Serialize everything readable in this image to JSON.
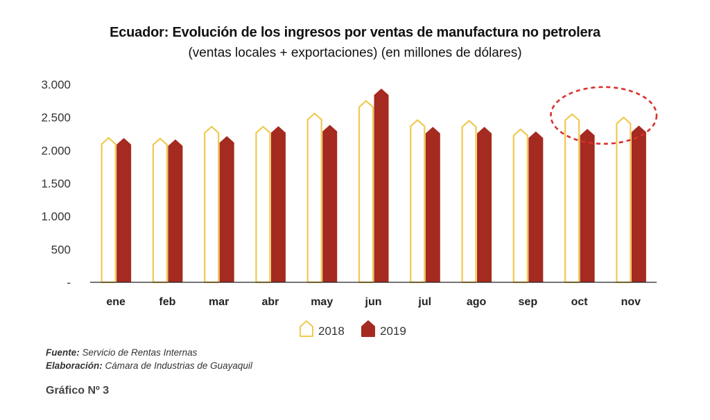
{
  "colors": {
    "series_2018": "#f0c94f",
    "series_2019": "#a52a1f",
    "highlight": "#d9302a",
    "axis": "#222222"
  },
  "figure_label": "Gráfico Nº 3",
  "source": {
    "fuente_label": "Fuente:",
    "fuente_text": "Servicio de Rentas Internas",
    "elaboracion_label": "Elaboración:",
    "elaboracion_text": "Cámara de Industrias de Guayaquil"
  },
  "chart_data": {
    "type": "bar",
    "title": "Ecuador: Evolución de los ingresos por ventas de manufactura no petrolera",
    "subtitle": "(ventas locales + exportaciones) (en millones de dólares)",
    "categories": [
      "ene",
      "feb",
      "mar",
      "abr",
      "may",
      "jun",
      "jul",
      "ago",
      "sep",
      "oct",
      "nov"
    ],
    "series": [
      {
        "name": "2018",
        "values": [
          2190,
          2180,
          2360,
          2360,
          2560,
          2750,
          2460,
          2450,
          2320,
          2550,
          2500
        ]
      },
      {
        "name": "2019",
        "values": [
          2180,
          2160,
          2210,
          2360,
          2380,
          2930,
          2350,
          2350,
          2280,
          2320,
          2370
        ]
      }
    ],
    "ylim": [
      0,
      3000
    ],
    "yticks": [
      {
        "value": 0,
        "label": "-"
      },
      {
        "value": 500,
        "label": "500"
      },
      {
        "value": 1000,
        "label": "1.000"
      },
      {
        "value": 1500,
        "label": "1.500"
      },
      {
        "value": 2000,
        "label": "2.000"
      },
      {
        "value": 2500,
        "label": "2.500"
      },
      {
        "value": 3000,
        "label": "3.000"
      }
    ],
    "grid": false,
    "legend": "bottom-center",
    "annotation": {
      "type": "dashed-ellipse",
      "categories": [
        "oct",
        "nov"
      ]
    }
  }
}
